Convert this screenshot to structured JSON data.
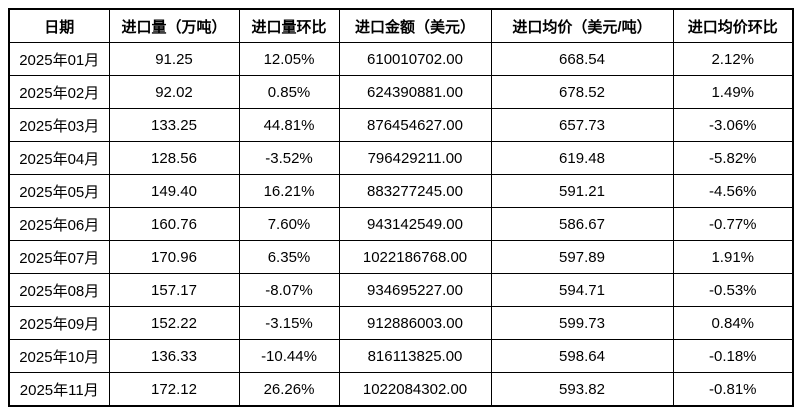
{
  "table": {
    "columns": [
      {
        "label": "日期"
      },
      {
        "label": "进口量（万吨）"
      },
      {
        "label": "进口量环比"
      },
      {
        "label": "进口金额（美元）"
      },
      {
        "label": "进口均价（美元/吨）"
      },
      {
        "label": "进口均价环比"
      }
    ],
    "rows": [
      [
        "2025年01月",
        "91.25",
        "12.05%",
        "610010702.00",
        "668.54",
        "2.12%"
      ],
      [
        "2025年02月",
        "92.02",
        "0.85%",
        "624390881.00",
        "678.52",
        "1.49%"
      ],
      [
        "2025年03月",
        "133.25",
        "44.81%",
        "876454627.00",
        "657.73",
        "-3.06%"
      ],
      [
        "2025年04月",
        "128.56",
        "-3.52%",
        "796429211.00",
        "619.48",
        "-5.82%"
      ],
      [
        "2025年05月",
        "149.40",
        "16.21%",
        "883277245.00",
        "591.21",
        "-4.56%"
      ],
      [
        "2025年06月",
        "160.76",
        "7.60%",
        "943142549.00",
        "586.67",
        "-0.77%"
      ],
      [
        "2025年07月",
        "170.96",
        "6.35%",
        "1022186768.00",
        "597.89",
        "1.91%"
      ],
      [
        "2025年08月",
        "157.17",
        "-8.07%",
        "934695227.00",
        "594.71",
        "-0.53%"
      ],
      [
        "2025年09月",
        "152.22",
        "-3.15%",
        "912886003.00",
        "599.73",
        "0.84%"
      ],
      [
        "2025年10月",
        "136.33",
        "-10.44%",
        "816113825.00",
        "598.64",
        "-0.18%"
      ],
      [
        "2025年11月",
        "172.12",
        "26.26%",
        "1022084302.00",
        "593.82",
        "-0.81%"
      ]
    ],
    "colors": {
      "border": "#000000",
      "text": "#000000",
      "background": "#FFFFFF"
    }
  },
  "chart_data": {
    "type": "table",
    "title": "",
    "columns": [
      "日期",
      "进口量（万吨）",
      "进口量环比",
      "进口金额（美元）",
      "进口均价（美元/吨）",
      "进口均价环比"
    ],
    "categories": [
      "2025年01月",
      "2025年02月",
      "2025年03月",
      "2025年04月",
      "2025年05月",
      "2025年06月",
      "2025年07月",
      "2025年08月",
      "2025年09月",
      "2025年10月",
      "2025年11月"
    ],
    "series": [
      {
        "name": "进口量（万吨）",
        "values": [
          91.25,
          92.02,
          133.25,
          128.56,
          149.4,
          160.76,
          170.96,
          157.17,
          152.22,
          136.33,
          172.12
        ]
      },
      {
        "name": "进口量环比",
        "values": [
          12.05,
          0.85,
          44.81,
          -3.52,
          16.21,
          7.6,
          6.35,
          -8.07,
          -3.15,
          -10.44,
          26.26
        ]
      },
      {
        "name": "进口金额（美元）",
        "values": [
          610010702.0,
          624390881.0,
          876454627.0,
          796429211.0,
          883277245.0,
          943142549.0,
          1022186768.0,
          934695227.0,
          912886003.0,
          816113825.0,
          1022084302.0
        ]
      },
      {
        "name": "进口均价（美元/吨）",
        "values": [
          668.54,
          678.52,
          657.73,
          619.48,
          591.21,
          586.67,
          597.89,
          594.71,
          599.73,
          598.64,
          593.82
        ]
      },
      {
        "name": "进口均价环比",
        "values": [
          2.12,
          1.49,
          -3.06,
          -5.82,
          -4.56,
          -0.77,
          1.91,
          -0.53,
          0.84,
          -0.18,
          -0.81
        ]
      }
    ]
  }
}
